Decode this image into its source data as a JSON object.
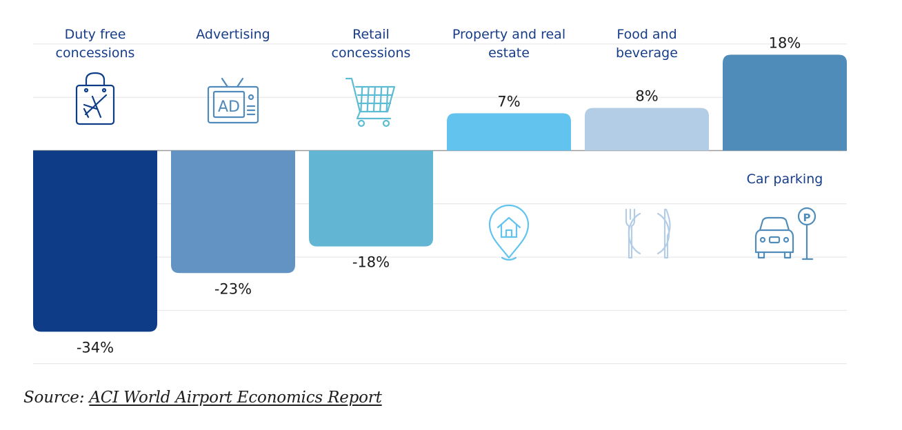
{
  "chart_data": {
    "type": "bar",
    "categories": [
      "Duty free concessions",
      "Advertising",
      "Retail concessions",
      "Property and real estate",
      "Food and beverage",
      "Car parking"
    ],
    "category_label_lines": [
      [
        "Duty free",
        "concessions"
      ],
      [
        "Advertising"
      ],
      [
        "Retail",
        "concessions"
      ],
      [
        "Property and real",
        "estate"
      ],
      [
        "Food and",
        "beverage"
      ],
      [
        "Car parking"
      ]
    ],
    "values": [
      -34,
      -23,
      -18,
      7,
      8,
      18
    ],
    "value_labels": [
      "-34%",
      "-23%",
      "-18%",
      "7%",
      "8%",
      "18%"
    ],
    "bar_colors": [
      "#0f3c87",
      "#6293c3",
      "#63b6d3",
      "#62c3ee",
      "#b4cde6",
      "#508cba"
    ],
    "icons": [
      "shopping-bag-plane-icon",
      "tv-ad-icon",
      "shopping-cart-icon",
      "house-pin-icon",
      "plate-fork-knife-icon",
      "car-parking-icon"
    ],
    "icon_colors": [
      "#0f3c87",
      "#5089bb",
      "#5cbcd4",
      "#62c3ee",
      "#b4cde6",
      "#508cba"
    ],
    "label_color": "#163c8a",
    "value_label_color": "#1a1a1a",
    "ylim": [
      -40,
      20
    ],
    "grid": true,
    "legend": "none",
    "title": "",
    "xlabel": "",
    "ylabel": ""
  },
  "source": {
    "prefix": "Source: ",
    "link_text": "ACI World Airport Economics Report"
  }
}
